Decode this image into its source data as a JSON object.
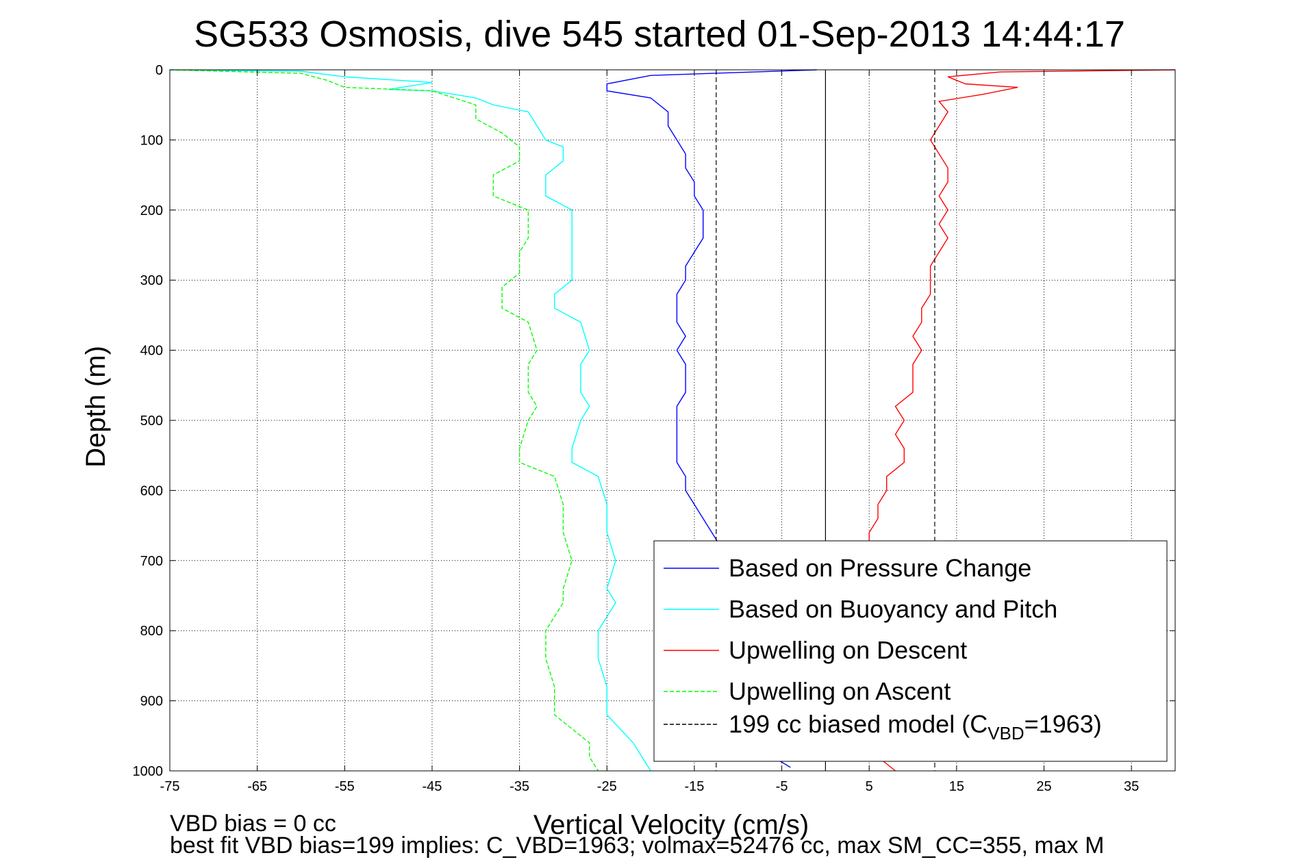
{
  "chart_data": {
    "type": "line",
    "title": "SG533 Osmosis, dive 545 started 01-Sep-2013 14:44:17",
    "xlabel": "Vertical Velocity (cm/s)",
    "ylabel": "Depth (m)",
    "xlim": [
      -75,
      40
    ],
    "ylim": [
      0,
      1000
    ],
    "y_reversed": true,
    "grid": true,
    "legend_position": "bottom-right",
    "xticks": [
      -75,
      -65,
      -55,
      -45,
      -35,
      -25,
      -15,
      -5,
      5,
      15,
      25,
      35
    ],
    "yticks": [
      0,
      100,
      200,
      300,
      400,
      500,
      600,
      700,
      800,
      900,
      1000
    ],
    "vertical_lines": [
      {
        "x": 0,
        "style": "solid",
        "color": "#000000"
      },
      {
        "x": -12.5,
        "style": "dashed",
        "color": "#000000"
      },
      {
        "x": 12.5,
        "style": "dashed",
        "color": "#000000"
      }
    ],
    "series": [
      {
        "name": "Based on Pressure Change",
        "color": "#0000ff",
        "style": "solid",
        "points": [
          [
            -1,
            0
          ],
          [
            -20,
            8
          ],
          [
            -25,
            20
          ],
          [
            -25,
            30
          ],
          [
            -20,
            40
          ],
          [
            -18,
            60
          ],
          [
            -18,
            80
          ],
          [
            -17,
            100
          ],
          [
            -16,
            120
          ],
          [
            -16,
            140
          ],
          [
            -15,
            160
          ],
          [
            -15,
            180
          ],
          [
            -14,
            200
          ],
          [
            -14,
            220
          ],
          [
            -14,
            240
          ],
          [
            -15,
            260
          ],
          [
            -16,
            280
          ],
          [
            -16,
            300
          ],
          [
            -17,
            320
          ],
          [
            -17,
            340
          ],
          [
            -17,
            360
          ],
          [
            -16,
            380
          ],
          [
            -17,
            400
          ],
          [
            -16,
            420
          ],
          [
            -16,
            440
          ],
          [
            -16,
            460
          ],
          [
            -17,
            480
          ],
          [
            -17,
            500
          ],
          [
            -17,
            520
          ],
          [
            -17,
            540
          ],
          [
            -17,
            560
          ],
          [
            -16,
            580
          ],
          [
            -16,
            600
          ],
          [
            -15,
            620
          ],
          [
            -14,
            640
          ],
          [
            -13,
            660
          ],
          [
            -12,
            680
          ],
          [
            -12,
            700
          ],
          [
            -11,
            740
          ],
          [
            -11,
            800
          ],
          [
            -11,
            850
          ],
          [
            -11,
            900
          ],
          [
            -10,
            950
          ],
          [
            -6,
            980
          ],
          [
            -4,
            995
          ]
        ]
      },
      {
        "name": "Based on Buoyancy and Pitch",
        "color": "#00ffff",
        "style": "solid",
        "points": [
          [
            -75,
            0
          ],
          [
            -60,
            2
          ],
          [
            -55,
            10
          ],
          [
            -45,
            18
          ],
          [
            -50,
            28
          ],
          [
            -45,
            30
          ],
          [
            -40,
            40
          ],
          [
            -38,
            50
          ],
          [
            -34,
            60
          ],
          [
            -33,
            80
          ],
          [
            -32,
            100
          ],
          [
            -30,
            110
          ],
          [
            -30,
            130
          ],
          [
            -32,
            150
          ],
          [
            -32,
            180
          ],
          [
            -29,
            200
          ],
          [
            -29,
            240
          ],
          [
            -29,
            260
          ],
          [
            -29,
            300
          ],
          [
            -31,
            320
          ],
          [
            -31,
            340
          ],
          [
            -28,
            360
          ],
          [
            -27,
            400
          ],
          [
            -28,
            420
          ],
          [
            -28,
            460
          ],
          [
            -27,
            480
          ],
          [
            -28,
            500
          ],
          [
            -29,
            540
          ],
          [
            -29,
            560
          ],
          [
            -26,
            580
          ],
          [
            -25,
            620
          ],
          [
            -25,
            660
          ],
          [
            -24,
            700
          ],
          [
            -25,
            740
          ],
          [
            -24,
            760
          ],
          [
            -26,
            800
          ],
          [
            -26,
            840
          ],
          [
            -25,
            880
          ],
          [
            -25,
            920
          ],
          [
            -22,
            960
          ],
          [
            -21,
            980
          ],
          [
            -20,
            1000
          ]
        ]
      },
      {
        "name": "Upwelling on Descent",
        "color": "#ff0000",
        "style": "solid",
        "points": [
          [
            40,
            0
          ],
          [
            20,
            3
          ],
          [
            14,
            10
          ],
          [
            16,
            20
          ],
          [
            22,
            25
          ],
          [
            18,
            35
          ],
          [
            13,
            45
          ],
          [
            14,
            60
          ],
          [
            13,
            80
          ],
          [
            12,
            100
          ],
          [
            13,
            120
          ],
          [
            14,
            140
          ],
          [
            14,
            160
          ],
          [
            13,
            180
          ],
          [
            14,
            200
          ],
          [
            13,
            220
          ],
          [
            14,
            240
          ],
          [
            13,
            260
          ],
          [
            12,
            280
          ],
          [
            12,
            300
          ],
          [
            12,
            320
          ],
          [
            11,
            340
          ],
          [
            11,
            360
          ],
          [
            10,
            380
          ],
          [
            11,
            400
          ],
          [
            10,
            420
          ],
          [
            10,
            440
          ],
          [
            10,
            460
          ],
          [
            8,
            480
          ],
          [
            9,
            500
          ],
          [
            8,
            520
          ],
          [
            9,
            540
          ],
          [
            9,
            560
          ],
          [
            7,
            580
          ],
          [
            7,
            600
          ],
          [
            6,
            620
          ],
          [
            6,
            640
          ],
          [
            5,
            660
          ],
          [
            5,
            700
          ],
          [
            5,
            740
          ],
          [
            5,
            800
          ],
          [
            5,
            850
          ],
          [
            5,
            900
          ],
          [
            5,
            950
          ],
          [
            6,
            980
          ],
          [
            8,
            1000
          ]
        ]
      },
      {
        "name": "Upwelling on Ascent",
        "color": "#00ff00",
        "style": "dashed",
        "points": [
          [
            -75,
            0
          ],
          [
            -60,
            5
          ],
          [
            -57,
            15
          ],
          [
            -55,
            25
          ],
          [
            -45,
            30
          ],
          [
            -40,
            50
          ],
          [
            -40,
            70
          ],
          [
            -37,
            90
          ],
          [
            -35,
            110
          ],
          [
            -35,
            130
          ],
          [
            -38,
            150
          ],
          [
            -38,
            180
          ],
          [
            -34,
            200
          ],
          [
            -34,
            240
          ],
          [
            -35,
            260
          ],
          [
            -35,
            290
          ],
          [
            -37,
            310
          ],
          [
            -37,
            340
          ],
          [
            -34,
            360
          ],
          [
            -33,
            400
          ],
          [
            -34,
            420
          ],
          [
            -34,
            460
          ],
          [
            -33,
            480
          ],
          [
            -34,
            500
          ],
          [
            -35,
            540
          ],
          [
            -35,
            560
          ],
          [
            -31,
            580
          ],
          [
            -30,
            620
          ],
          [
            -30,
            660
          ],
          [
            -29,
            700
          ],
          [
            -30,
            740
          ],
          [
            -30,
            760
          ],
          [
            -32,
            800
          ],
          [
            -32,
            840
          ],
          [
            -31,
            880
          ],
          [
            -31,
            920
          ],
          [
            -27,
            960
          ],
          [
            -27,
            980
          ],
          [
            -26,
            1000
          ]
        ]
      },
      {
        "name": "199 cc biased model (C_VBD=1963)",
        "color": "#000000",
        "style": "dashed",
        "points": [
          [
            -12.5,
            0
          ],
          [
            -12.5,
            1000
          ]
        ]
      }
    ],
    "legend": {
      "entries": [
        {
          "label": "Based on Pressure Change",
          "color": "#0000ff",
          "style": "solid"
        },
        {
          "label": "Based on Buoyancy and Pitch",
          "color": "#00ffff",
          "style": "solid"
        },
        {
          "label": "Upwelling on Descent",
          "color": "#ff0000",
          "style": "solid"
        },
        {
          "label": "Upwelling on Ascent",
          "color": "#00ff00",
          "style": "dashed"
        },
        {
          "label_main": "199 cc biased model (C",
          "label_sub": "VBD",
          "label_tail": "=1963)",
          "color": "#000000",
          "style": "dashed"
        }
      ]
    },
    "footnotes": {
      "line1": "VBD bias = 0 cc",
      "line2": "best fit VBD bias=199 implies: C_VBD=1963; volmax=52476 cc, max SM_CC=355, max M"
    }
  }
}
